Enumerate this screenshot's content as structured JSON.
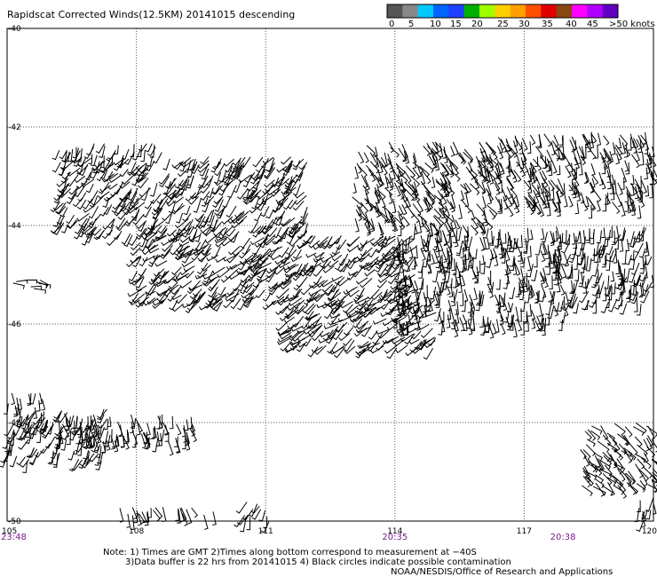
{
  "chart_data": {
    "type": "scatter",
    "title": "Rapidscat Corrected Winds(12.5KM) 20141015 descending",
    "xlim": [
      105,
      120
    ],
    "ylim": [
      -50,
      -40
    ],
    "x_ticks": [
      "105",
      "108",
      "111",
      "114",
      "117",
      "120"
    ],
    "y_ticks": [
      "-40",
      "-42",
      "-44",
      "-46",
      "-48",
      "-50"
    ],
    "grid": true,
    "legend": {
      "placement": "top-right",
      "colors": [
        "#555555",
        "#888888",
        "#00c8ff",
        "#0064ff",
        "#2040ff",
        "#00b000",
        "#a0ff00",
        "#ffd000",
        "#ffa000",
        "#ff5000",
        "#e00000",
        "#8b4513",
        "#ff00ff",
        "#b000ff",
        "#6000c0"
      ],
      "labels": [
        "0",
        "5",
        "10",
        "15",
        "20",
        "25",
        "30",
        "35",
        "40",
        "45",
        ">50 knots"
      ]
    },
    "times": [
      {
        "x": 105,
        "label": "23:48"
      },
      {
        "x": 114,
        "label": "20:35"
      },
      {
        "x": 117.9,
        "label": "20:38"
      }
    ],
    "swaths": [
      {
        "lon": [
          106.2,
          108.6
        ],
        "lat": [
          -42.3,
          -42.6
        ],
        "dir_deg": 200,
        "kt": 15
      },
      {
        "lon": [
          106.2,
          112.0
        ],
        "lat": [
          -42.6,
          -44.2
        ],
        "dir_deg": 215,
        "kt": 15
      },
      {
        "lon": [
          108.0,
          114.5
        ],
        "lat": [
          -44.2,
          -45.6
        ],
        "dir_deg": 225,
        "kt": 15
      },
      {
        "lon": [
          111.5,
          115.0
        ],
        "lat": [
          -45.5,
          -46.5
        ],
        "dir_deg": 230,
        "kt": 20
      },
      {
        "lon": [
          113.0,
          116.2
        ],
        "lat": [
          -42.3,
          -44.0
        ],
        "dir_deg": 150,
        "kt": 15
      },
      {
        "lon": [
          116.3,
          120.0
        ],
        "lat": [
          -42.1,
          -43.6
        ],
        "dir_deg": 160,
        "kt": 15
      },
      {
        "lon": [
          114.0,
          118.0
        ],
        "lat": [
          -44.0,
          -46.0
        ],
        "dir_deg": 175,
        "kt": 15
      },
      {
        "lon": [
          118.0,
          120.0
        ],
        "lat": [
          -44.0,
          -45.6
        ],
        "dir_deg": 190,
        "kt": 15
      },
      {
        "lon": [
          105.0,
          105.8
        ],
        "lat": [
          -45.1,
          -45.3
        ],
        "dir_deg": 100,
        "kt": 10
      },
      {
        "lon": [
          105.0,
          107.4
        ],
        "lat": [
          -47.7,
          -48.8
        ],
        "dir_deg": 200,
        "kt": 20
      },
      {
        "lon": [
          106.2,
          109.3
        ],
        "lat": [
          -47.8,
          -48.4
        ],
        "dir_deg": 170,
        "kt": 15
      },
      {
        "lon": [
          118.3,
          120.0
        ],
        "lat": [
          -48.0,
          -49.3
        ],
        "dir_deg": 135,
        "kt": 15
      },
      {
        "lon": [
          107.5,
          109.8
        ],
        "lat": [
          -49.7,
          -49.9
        ],
        "dir_deg": 160,
        "kt": 10
      },
      {
        "lon": [
          110.5,
          111.1
        ],
        "lat": [
          -49.6,
          -50.0
        ],
        "dir_deg": 200,
        "kt": 10
      },
      {
        "lon": [
          119.6,
          120.0
        ],
        "lat": [
          -49.5,
          -50.0
        ],
        "dir_deg": 180,
        "kt": 10
      }
    ],
    "high_wind_cluster": {
      "lon": [
        105.0,
        105.9
      ],
      "lat": [
        -47.4,
        -47.7
      ],
      "kt": 30
    }
  },
  "footer": {
    "note_1": "Note: 1) Times are GMT 2)Times along bottom correspond to measurement at −40S",
    "note_2": "3)Data buffer is 22 hrs from 20141015 4) Black circles indicate possible contamination",
    "credit": "NOAA/NESDIS/Office of Research and Applications"
  }
}
